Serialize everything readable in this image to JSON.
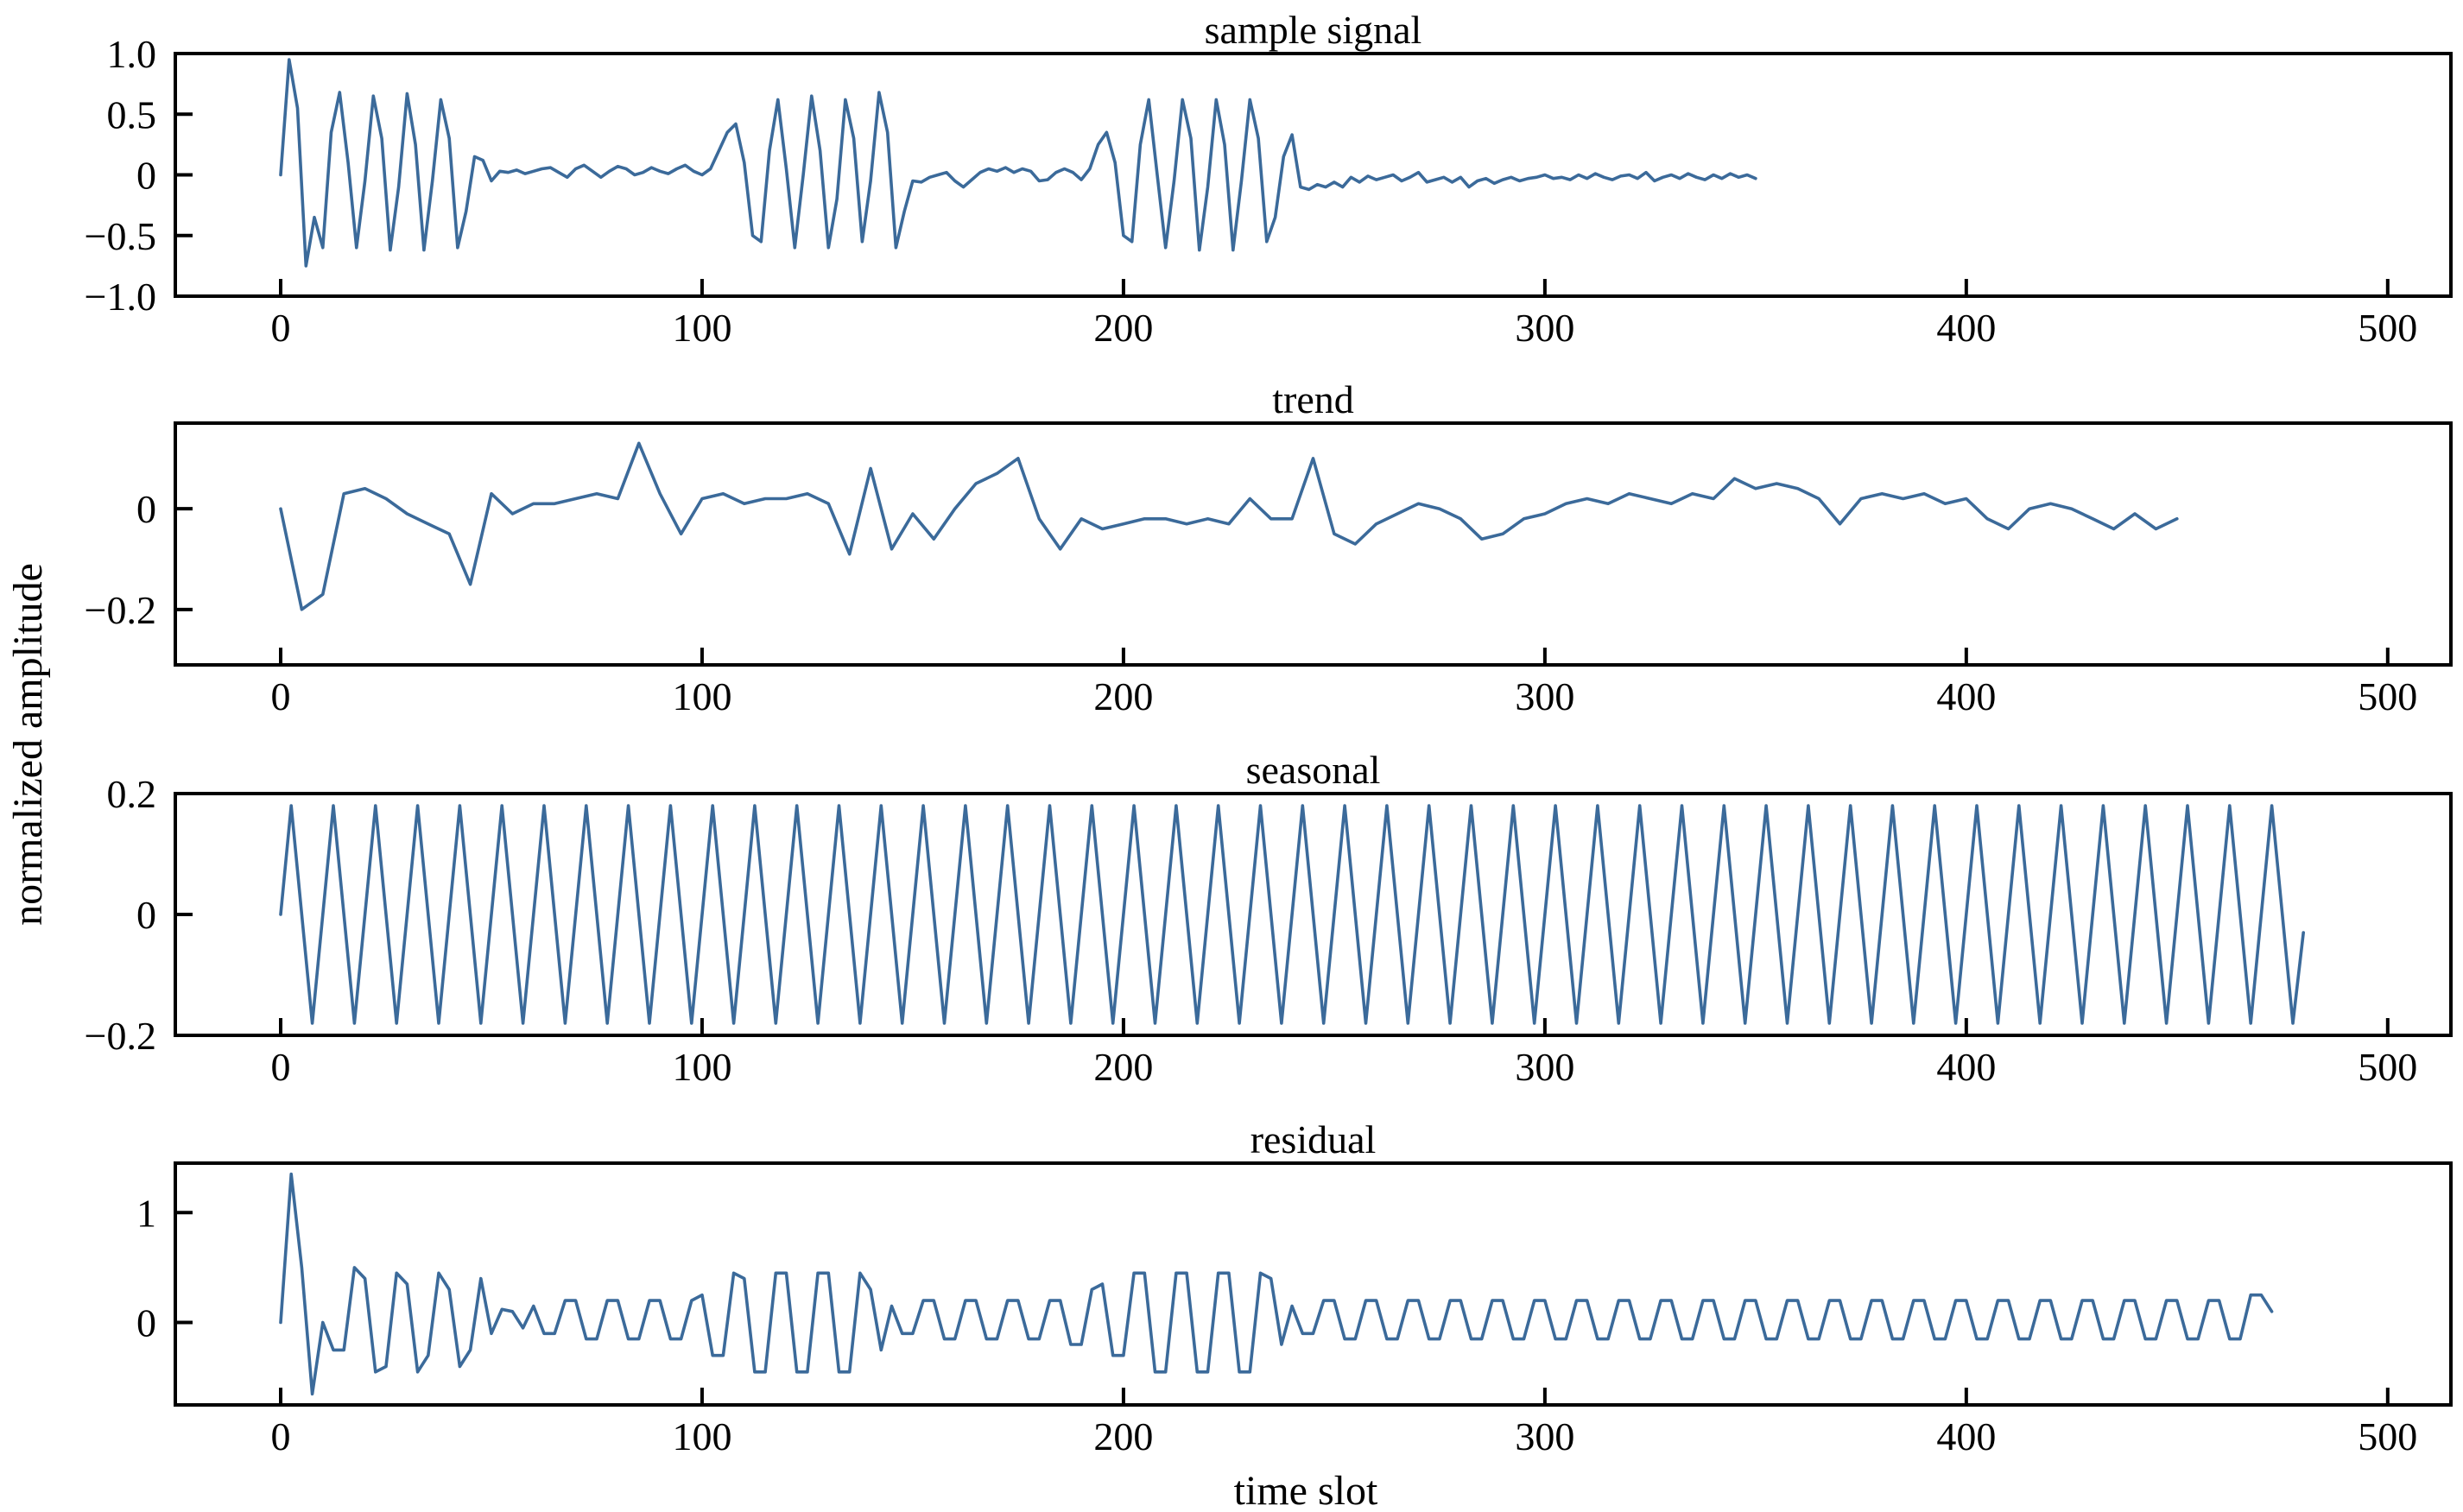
{
  "chart_data": {
    "type": "line",
    "ylabel": "normalized amplitude",
    "xlabel": "time slot",
    "line_color": "#3b6a9a",
    "grid": false,
    "legend": "none",
    "panels": [
      {
        "title": "sample signal",
        "xlim": [
          -25,
          515
        ],
        "ylim": [
          -1.0,
          1.0
        ],
        "xticks": [
          0,
          100,
          200,
          300,
          400,
          500
        ],
        "xtick_labels": [
          "0",
          "100",
          "200",
          "300",
          "400",
          "500"
        ],
        "yticks": [
          -1.0,
          -0.5,
          0,
          0.5,
          1.0
        ],
        "ytick_labels": [
          "−1.0",
          "−0.5",
          "0",
          "0.5",
          "1.0"
        ],
        "series": [
          {
            "x_step": 2,
            "values": [
              0.0,
              0.95,
              0.55,
              -0.75,
              -0.35,
              -0.6,
              0.35,
              0.68,
              0.1,
              -0.6,
              -0.05,
              0.65,
              0.3,
              -0.62,
              -0.1,
              0.67,
              0.25,
              -0.62,
              -0.05,
              0.62,
              0.3,
              -0.6,
              -0.3,
              0.15,
              0.12,
              -0.05,
              0.03,
              0.02,
              0.04,
              0.01,
              0.03,
              0.05,
              0.06,
              0.02,
              -0.02,
              0.05,
              0.08,
              0.03,
              -0.02,
              0.03,
              0.07,
              0.05,
              0.0,
              0.02,
              0.06,
              0.03,
              0.01,
              0.05,
              0.08,
              0.03,
              0.0,
              0.05,
              0.2,
              0.35,
              0.42,
              0.1,
              -0.5,
              -0.55,
              0.2,
              0.62,
              0.05,
              -0.6,
              0.0,
              0.65,
              0.2,
              -0.6,
              -0.2,
              0.62,
              0.3,
              -0.55,
              -0.05,
              0.68,
              0.35,
              -0.6,
              -0.3,
              -0.05,
              -0.06,
              -0.02,
              0.0,
              0.02,
              -0.05,
              -0.1,
              -0.04,
              0.02,
              0.05,
              0.03,
              0.06,
              0.02,
              0.05,
              0.03,
              -0.05,
              -0.04,
              0.02,
              0.05,
              0.02,
              -0.04,
              0.05,
              0.25,
              0.35,
              0.1,
              -0.5,
              -0.55,
              0.25,
              0.62,
              0.0,
              -0.6,
              -0.05,
              0.62,
              0.3,
              -0.62,
              -0.1,
              0.62,
              0.25,
              -0.62,
              -0.05,
              0.62,
              0.3,
              -0.55,
              -0.35,
              0.15,
              0.33,
              -0.1,
              -0.12,
              -0.08,
              -0.1,
              -0.06,
              -0.1,
              -0.02,
              -0.06,
              -0.01,
              -0.04,
              -0.02,
              0.0,
              -0.05,
              -0.02,
              0.02,
              -0.06,
              -0.04,
              -0.02,
              -0.06,
              -0.02,
              -0.1,
              -0.05,
              -0.03,
              -0.07,
              -0.04,
              -0.02,
              -0.05,
              -0.03,
              -0.02,
              0.0,
              -0.03,
              -0.02,
              -0.04,
              0.0,
              -0.03,
              0.01,
              -0.02,
              -0.04,
              -0.01,
              0.0,
              -0.03,
              0.02,
              -0.05,
              -0.02,
              0.0,
              -0.03,
              0.01,
              -0.02,
              -0.04,
              0.0,
              -0.03,
              0.01,
              -0.02,
              0.0,
              -0.03
            ]
          }
        ]
      },
      {
        "title": "trend",
        "xlim": [
          -25,
          515
        ],
        "ylim": [
          -0.31,
          0.17
        ],
        "xticks": [
          0,
          100,
          200,
          300,
          400,
          500
        ],
        "xtick_labels": [
          "0",
          "100",
          "200",
          "300",
          "400",
          "500"
        ],
        "yticks": [
          -0.2,
          0
        ],
        "ytick_labels": [
          "−0.2",
          "0"
        ],
        "series": [
          {
            "x_step": 5,
            "values": [
              0.0,
              -0.2,
              -0.17,
              0.03,
              0.04,
              0.02,
              -0.01,
              -0.03,
              -0.05,
              -0.15,
              0.03,
              -0.01,
              0.01,
              0.01,
              0.02,
              0.03,
              0.02,
              0.13,
              0.03,
              -0.05,
              0.02,
              0.03,
              0.01,
              0.02,
              0.02,
              0.03,
              0.01,
              -0.09,
              0.08,
              -0.08,
              -0.01,
              -0.06,
              0.0,
              0.05,
              0.07,
              0.1,
              -0.02,
              -0.08,
              -0.02,
              -0.04,
              -0.03,
              -0.02,
              -0.02,
              -0.03,
              -0.02,
              -0.03,
              0.02,
              -0.02,
              -0.02,
              0.1,
              -0.05,
              -0.07,
              -0.03,
              -0.01,
              0.01,
              0.0,
              -0.02,
              -0.06,
              -0.05,
              -0.02,
              -0.01,
              0.01,
              0.02,
              0.01,
              0.03,
              0.02,
              0.01,
              0.03,
              0.02,
              0.06,
              0.04,
              0.05,
              0.04,
              0.02,
              -0.03,
              0.02,
              0.03,
              0.02,
              0.03,
              0.01,
              0.02,
              -0.02,
              -0.04,
              0.0,
              0.01,
              0.0,
              -0.02,
              -0.04,
              -0.01,
              -0.04,
              -0.02
            ]
          }
        ]
      },
      {
        "title": "seasonal",
        "xlim": [
          -25,
          515
        ],
        "ylim": [
          -0.2,
          0.2
        ],
        "xticks": [
          0,
          100,
          200,
          300,
          400,
          500
        ],
        "xtick_labels": [
          "0",
          "100",
          "200",
          "300",
          "400",
          "500"
        ],
        "yticks": [
          -0.2,
          0,
          0.2
        ],
        "ytick_labels": [
          "−0.2",
          "0",
          "0.2"
        ],
        "series": [
          {
            "x_step": 2.5,
            "values": [
              0.0,
              0.18,
              0.0,
              -0.18,
              0.0,
              0.18,
              0.0,
              -0.18,
              0.0,
              0.18,
              0.0,
              -0.18,
              0.0,
              0.18,
              0.0,
              -0.18,
              0.0,
              0.18,
              0.0,
              -0.18,
              0.0,
              0.18,
              0.0,
              -0.18,
              0.0,
              0.18,
              0.0,
              -0.18,
              0.0,
              0.18,
              0.0,
              -0.18,
              0.0,
              0.18,
              0.0,
              -0.18,
              0.0,
              0.18,
              0.0,
              -0.18,
              0.0,
              0.18,
              0.0,
              -0.18,
              0.0,
              0.18,
              0.0,
              -0.18,
              0.0,
              0.18,
              0.0,
              -0.18,
              0.0,
              0.18,
              0.0,
              -0.18,
              0.0,
              0.18,
              0.0,
              -0.18,
              0.0,
              0.18,
              0.0,
              -0.18,
              0.0,
              0.18,
              0.0,
              -0.18,
              0.0,
              0.18,
              0.0,
              -0.18,
              0.0,
              0.18,
              0.0,
              -0.18,
              0.0,
              0.18,
              0.0,
              -0.18,
              0.0,
              0.18,
              0.0,
              -0.18,
              0.0,
              0.18,
              0.0,
              -0.18,
              0.0,
              0.18,
              0.0,
              -0.18,
              0.0,
              0.18,
              0.0,
              -0.18,
              0.0,
              0.18,
              0.0,
              -0.18,
              0.0,
              0.18,
              0.0,
              -0.18,
              0.0,
              0.18,
              0.0,
              -0.18,
              0.0,
              0.18,
              0.0,
              -0.18,
              0.0,
              0.18,
              0.0,
              -0.18,
              0.0,
              0.18,
              0.0,
              -0.18,
              0.0,
              0.18,
              0.0,
              -0.18,
              0.0,
              0.18,
              0.0,
              -0.18,
              0.0,
              0.18,
              0.0,
              -0.18,
              0.0,
              0.18,
              0.0,
              -0.18,
              0.0,
              0.18,
              0.0,
              -0.18,
              0.0,
              0.18,
              0.0,
              -0.18,
              0.0,
              0.18,
              0.0,
              -0.18,
              0.0,
              0.18,
              0.0,
              -0.18,
              0.0,
              0.18,
              0.0,
              -0.18,
              0.0,
              0.18,
              0.0,
              -0.18,
              0.0,
              0.18,
              0.0,
              -0.18,
              0.0,
              0.18,
              0.0,
              -0.18,
              0.0,
              0.18,
              0.0,
              -0.18,
              0.0,
              0.18,
              0.0,
              -0.18,
              0.0,
              0.18,
              0.0,
              -0.18,
              0.0,
              0.18,
              0.0,
              -0.18,
              0.0,
              0.18,
              0.0,
              -0.18,
              0.0,
              0.18,
              0.0,
              -0.18,
              -0.03
            ]
          }
        ]
      },
      {
        "title": "residual",
        "xlim": [
          -25,
          515
        ],
        "ylim": [
          -0.75,
          1.45
        ],
        "xticks": [
          0,
          100,
          200,
          300,
          400,
          500
        ],
        "xtick_labels": [
          "0",
          "100",
          "200",
          "300",
          "400",
          "500"
        ],
        "yticks": [
          0,
          1
        ],
        "ytick_labels": [
          "0",
          "1"
        ],
        "series": [
          {
            "x_step": 2.5,
            "values": [
              0.0,
              1.35,
              0.5,
              -0.65,
              0.0,
              -0.25,
              -0.25,
              0.5,
              0.4,
              -0.45,
              -0.4,
              0.45,
              0.35,
              -0.45,
              -0.3,
              0.45,
              0.3,
              -0.4,
              -0.25,
              0.4,
              -0.1,
              0.12,
              0.1,
              -0.05,
              0.15,
              -0.1,
              -0.1,
              0.2,
              0.2,
              -0.15,
              -0.15,
              0.2,
              0.2,
              -0.15,
              -0.15,
              0.2,
              0.2,
              -0.15,
              -0.15,
              0.2,
              0.25,
              -0.3,
              -0.3,
              0.45,
              0.4,
              -0.45,
              -0.45,
              0.45,
              0.45,
              -0.45,
              -0.45,
              0.45,
              0.45,
              -0.45,
              -0.45,
              0.45,
              0.3,
              -0.25,
              0.15,
              -0.1,
              -0.1,
              0.2,
              0.2,
              -0.15,
              -0.15,
              0.2,
              0.2,
              -0.15,
              -0.15,
              0.2,
              0.2,
              -0.15,
              -0.15,
              0.2,
              0.2,
              -0.2,
              -0.2,
              0.3,
              0.35,
              -0.3,
              -0.3,
              0.45,
              0.45,
              -0.45,
              -0.45,
              0.45,
              0.45,
              -0.45,
              -0.45,
              0.45,
              0.45,
              -0.45,
              -0.45,
              0.45,
              0.4,
              -0.2,
              0.15,
              -0.1,
              -0.1,
              0.2,
              0.2,
              -0.15,
              -0.15,
              0.2,
              0.2,
              -0.15,
              -0.15,
              0.2,
              0.2,
              -0.15,
              -0.15,
              0.2,
              0.2,
              -0.15,
              -0.15,
              0.2,
              0.2,
              -0.15,
              -0.15,
              0.2,
              0.2,
              -0.15,
              -0.15,
              0.2,
              0.2,
              -0.15,
              -0.15,
              0.2,
              0.2,
              -0.15,
              -0.15,
              0.2,
              0.2,
              -0.15,
              -0.15,
              0.2,
              0.2,
              -0.15,
              -0.15,
              0.2,
              0.2,
              -0.15,
              -0.15,
              0.2,
              0.2,
              -0.15,
              -0.15,
              0.2,
              0.2,
              -0.15,
              -0.15,
              0.2,
              0.2,
              -0.15,
              -0.15,
              0.2,
              0.2,
              -0.15,
              -0.15,
              0.2,
              0.2,
              -0.15,
              -0.15,
              0.2,
              0.2,
              -0.15,
              -0.15,
              0.2,
              0.2,
              -0.15,
              -0.15,
              0.2,
              0.2,
              -0.15,
              -0.15,
              0.2,
              0.2,
              -0.15,
              -0.15,
              0.2,
              0.2,
              -0.15,
              -0.15,
              0.2,
              0.2,
              -0.15,
              -0.15,
              0.25,
              0.25,
              0.1
            ]
          }
        ]
      }
    ]
  }
}
